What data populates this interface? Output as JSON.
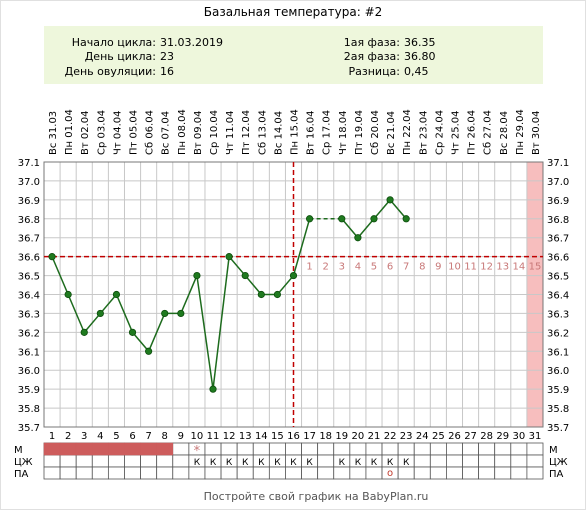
{
  "title": "Базальная температура: #2",
  "info": {
    "cycle_start_label": "Начало цикла:",
    "cycle_start": "31.03.2019",
    "cycle_day_label": "День цикла:",
    "cycle_day": "23",
    "ovulation_day_label": "День овуляции:",
    "ovulation_day": "16",
    "phase1_label": "1ая фаза:",
    "phase1": "36.35",
    "phase2_label": "2ая фаза:",
    "phase2": "36.80",
    "difference_label": "Разница:",
    "difference": "0,45"
  },
  "footer": "Постройте свой график на BabyPlan.ru",
  "rows": {
    "m": "М",
    "czh": "ЦЖ",
    "pa": "ПА",
    "czh_mark": "К",
    "ovulation_mark": "*",
    "pa_mark": "o"
  },
  "colors": {
    "line": "#1d6b1d",
    "marker": "#1f7a1f",
    "ovulation_line": "#c00000",
    "luteal_label": "#c87878",
    "menstruation": "#cd5c5c",
    "highlight_column": "#f7bebe",
    "info_bg": "#eef7dc",
    "grid": "#c8c8c8"
  },
  "chart_data": {
    "type": "line",
    "title": "Базальная температура: #2",
    "x": [
      1,
      2,
      3,
      4,
      5,
      6,
      7,
      8,
      9,
      10,
      11,
      12,
      13,
      14,
      15,
      16,
      17,
      18,
      19,
      20,
      21,
      22,
      23
    ],
    "y": [
      36.6,
      36.4,
      36.2,
      36.3,
      36.4,
      36.2,
      36.1,
      36.3,
      36.3,
      36.5,
      35.9,
      36.6,
      36.5,
      36.4,
      36.4,
      36.5,
      36.8,
      null,
      36.8,
      36.7,
      36.8,
      36.9,
      36.8
    ],
    "days": [
      1,
      2,
      3,
      4,
      5,
      6,
      7,
      8,
      9,
      10,
      11,
      12,
      13,
      14,
      15,
      16,
      17,
      18,
      19,
      20,
      21,
      22,
      23,
      24,
      25,
      26,
      27,
      28,
      29,
      30,
      31
    ],
    "dates": [
      "Вс 31.03",
      "Пн 01.04",
      "Вт 02.04",
      "Ср 03.04",
      "Чт 04.04",
      "Пт 05.04",
      "Сб 06.04",
      "Вс 07.04",
      "Пн 08.04",
      "Вт 09.04",
      "Ср 10.04",
      "Чт 11.04",
      "Пт 12.04",
      "Сб 13.04",
      "Вс 14.04",
      "Пн 15.04",
      "Вт 16.04",
      "Ср 17.04",
      "Чт 18.04",
      "Пт 19.04",
      "Сб 20.04",
      "Вс 21.04",
      "Пн 22.04",
      "Вт 23.04",
      "Ср 24.04",
      "Чт 25.04",
      "Пт 26.04",
      "Сб 27.04",
      "Вс 28.04",
      "Пн 29.04",
      "Вт 30.04"
    ],
    "y_ticks": [
      "37.1",
      "37.0",
      "36.9",
      "36.8",
      "36.7",
      "36.6",
      "36.5",
      "36.4",
      "36.3",
      "36.2",
      "36.1",
      "36.0",
      "35.9",
      "35.8",
      "35.7"
    ],
    "ylim": [
      35.7,
      37.1
    ],
    "xlim": [
      1,
      31
    ],
    "coverline": 36.6,
    "ovulation_day": 16,
    "luteal_labels": [
      "1",
      "2",
      "3",
      "4",
      "5",
      "6",
      "7",
      "8",
      "9",
      "10",
      "11",
      "12",
      "13",
      "14",
      "15"
    ],
    "highlighted_day": 31,
    "menstruation_days": [
      1,
      2,
      3,
      4,
      5,
      6,
      7,
      8
    ],
    "ovulation_star_day": 10,
    "czh_days": [
      10,
      11,
      12,
      13,
      14,
      15,
      16,
      17,
      19,
      20,
      21,
      22,
      23
    ],
    "pa_days": [
      22
    ],
    "grid": true
  }
}
